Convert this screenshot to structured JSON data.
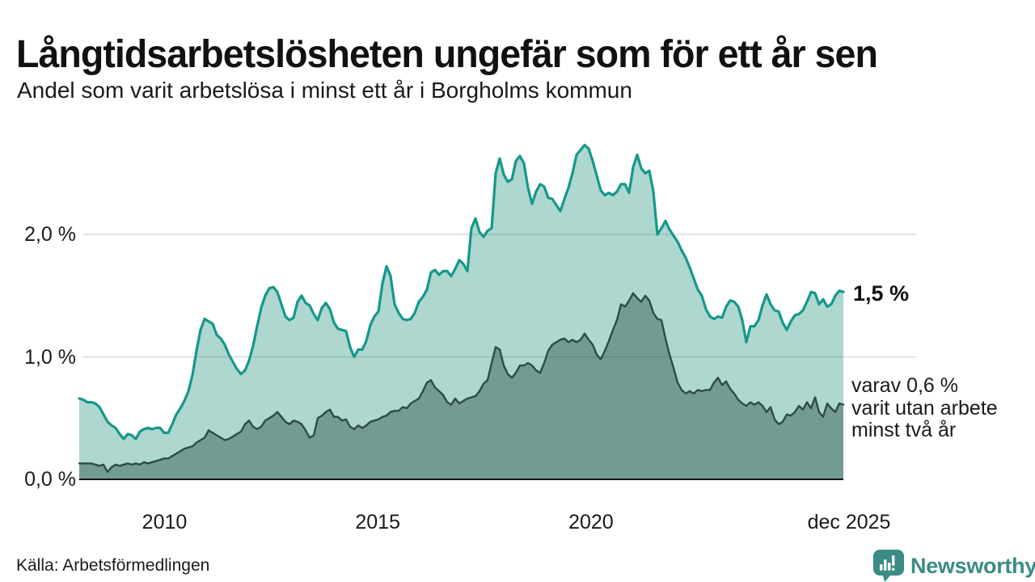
{
  "page": {
    "title": "Långtidsarbetslösheten ungefär som för ett år sen",
    "subtitle": "Andel som varit arbetslösa i minst ett år i Borgholms kommun",
    "source": "Källa: Arbetsförmedlingen",
    "brand": "Newsworthy"
  },
  "colors": {
    "series1_line": "#15988a",
    "series1_fill": "#add7cf",
    "series2_line": "#2f4b46",
    "series2_fill": "#749b92",
    "gridline": "#d9d9d9",
    "axis": "#111111",
    "brand_teal": "#3a8c84",
    "text": "#1a1a1a"
  },
  "chart_data": {
    "type": "area",
    "title": "Långtidsarbetslösheten ungefär som för ett år sen",
    "subtitle": "Andel som varit arbetslösa i minst ett år i Borgholms kommun",
    "x_range": [
      2008.0,
      2025.917
    ],
    "ylim": [
      0,
      2.79
    ],
    "grid": true,
    "yticks": [
      {
        "value": 0,
        "label": "0,0 %"
      },
      {
        "value": 1,
        "label": "1,0 %"
      },
      {
        "value": 2,
        "label": "2,0 %"
      }
    ],
    "xticks": [
      {
        "value": 2010,
        "label": "2010"
      },
      {
        "value": 2015,
        "label": "2015"
      },
      {
        "value": 2020,
        "label": "2020"
      },
      {
        "value": 2025.917,
        "label": "dec 2025"
      }
    ],
    "series": [
      {
        "name": "Andel som varit arbetslösa i minst ett år",
        "end_value_label": "1,5 %",
        "color": "#15988a",
        "values": [
          0.66,
          0.65,
          0.63,
          0.63,
          0.62,
          0.59,
          0.53,
          0.47,
          0.44,
          0.42,
          0.37,
          0.33,
          0.37,
          0.36,
          0.33,
          0.39,
          0.41,
          0.42,
          0.41,
          0.42,
          0.42,
          0.38,
          0.38,
          0.45,
          0.53,
          0.58,
          0.64,
          0.72,
          0.85,
          1.05,
          1.22,
          1.31,
          1.29,
          1.27,
          1.18,
          1.15,
          1.1,
          1.02,
          0.96,
          0.9,
          0.86,
          0.89,
          0.97,
          1.09,
          1.25,
          1.4,
          1.5,
          1.56,
          1.57,
          1.53,
          1.43,
          1.33,
          1.3,
          1.32,
          1.45,
          1.5,
          1.44,
          1.42,
          1.35,
          1.3,
          1.4,
          1.44,
          1.39,
          1.28,
          1.23,
          1.22,
          1.21,
          1.08,
          1.0,
          1.06,
          1.06,
          1.13,
          1.26,
          1.33,
          1.37,
          1.6,
          1.74,
          1.66,
          1.43,
          1.36,
          1.31,
          1.3,
          1.31,
          1.36,
          1.45,
          1.49,
          1.55,
          1.69,
          1.71,
          1.67,
          1.7,
          1.7,
          1.66,
          1.72,
          1.79,
          1.76,
          1.7,
          2.05,
          2.13,
          2.02,
          1.98,
          2.03,
          2.05,
          2.5,
          2.62,
          2.49,
          2.43,
          2.45,
          2.6,
          2.64,
          2.58,
          2.38,
          2.25,
          2.35,
          2.41,
          2.39,
          2.3,
          2.29,
          2.24,
          2.19,
          2.29,
          2.38,
          2.5,
          2.65,
          2.69,
          2.73,
          2.7,
          2.6,
          2.48,
          2.36,
          2.32,
          2.34,
          2.32,
          2.35,
          2.41,
          2.41,
          2.34,
          2.55,
          2.65,
          2.54,
          2.5,
          2.52,
          2.35,
          2.0,
          2.05,
          2.11,
          2.04,
          1.99,
          1.94,
          1.87,
          1.81,
          1.73,
          1.64,
          1.55,
          1.5,
          1.39,
          1.33,
          1.31,
          1.33,
          1.32,
          1.41,
          1.46,
          1.45,
          1.41,
          1.3,
          1.12,
          1.25,
          1.25,
          1.3,
          1.42,
          1.51,
          1.43,
          1.38,
          1.37,
          1.28,
          1.22,
          1.29,
          1.34,
          1.35,
          1.38,
          1.45,
          1.53,
          1.52,
          1.43,
          1.47,
          1.41,
          1.43,
          1.5,
          1.54,
          1.53
        ]
      },
      {
        "name": "varav varit utan arbete minst två år",
        "end_value_label": "varav 0,6 %",
        "color": "#2f4b46",
        "values": [
          0.13,
          0.13,
          0.13,
          0.13,
          0.12,
          0.11,
          0.12,
          0.06,
          0.1,
          0.12,
          0.11,
          0.12,
          0.13,
          0.12,
          0.13,
          0.12,
          0.14,
          0.13,
          0.14,
          0.15,
          0.16,
          0.17,
          0.17,
          0.19,
          0.21,
          0.23,
          0.25,
          0.26,
          0.27,
          0.3,
          0.32,
          0.34,
          0.4,
          0.38,
          0.36,
          0.34,
          0.32,
          0.33,
          0.35,
          0.37,
          0.39,
          0.45,
          0.48,
          0.43,
          0.41,
          0.43,
          0.48,
          0.5,
          0.52,
          0.55,
          0.51,
          0.47,
          0.45,
          0.48,
          0.47,
          0.45,
          0.4,
          0.34,
          0.36,
          0.5,
          0.52,
          0.55,
          0.57,
          0.51,
          0.51,
          0.48,
          0.49,
          0.43,
          0.41,
          0.44,
          0.42,
          0.44,
          0.47,
          0.48,
          0.49,
          0.51,
          0.52,
          0.55,
          0.56,
          0.56,
          0.59,
          0.58,
          0.62,
          0.64,
          0.66,
          0.72,
          0.79,
          0.81,
          0.75,
          0.72,
          0.69,
          0.63,
          0.61,
          0.66,
          0.62,
          0.64,
          0.66,
          0.67,
          0.68,
          0.72,
          0.78,
          0.81,
          0.95,
          1.08,
          1.06,
          0.93,
          0.86,
          0.83,
          0.87,
          0.93,
          0.93,
          0.95,
          0.93,
          0.89,
          0.87,
          0.95,
          1.05,
          1.1,
          1.12,
          1.14,
          1.15,
          1.12,
          1.14,
          1.12,
          1.14,
          1.19,
          1.14,
          1.1,
          1.02,
          0.98,
          1.05,
          1.13,
          1.22,
          1.3,
          1.43,
          1.41,
          1.46,
          1.52,
          1.48,
          1.45,
          1.5,
          1.46,
          1.36,
          1.31,
          1.3,
          1.15,
          1.02,
          0.91,
          0.79,
          0.73,
          0.7,
          0.72,
          0.7,
          0.73,
          0.72,
          0.73,
          0.73,
          0.79,
          0.83,
          0.77,
          0.8,
          0.74,
          0.7,
          0.65,
          0.62,
          0.6,
          0.63,
          0.61,
          0.63,
          0.6,
          0.55,
          0.59,
          0.49,
          0.45,
          0.47,
          0.53,
          0.52,
          0.55,
          0.6,
          0.57,
          0.63,
          0.58,
          0.67,
          0.55,
          0.51,
          0.62,
          0.58,
          0.55,
          0.62,
          0.61
        ]
      }
    ],
    "annotations": {
      "series1_end": "1,5 %",
      "series2_end": [
        "varav 0,6 %",
        "varit utan arbete",
        "minst två år"
      ]
    }
  }
}
